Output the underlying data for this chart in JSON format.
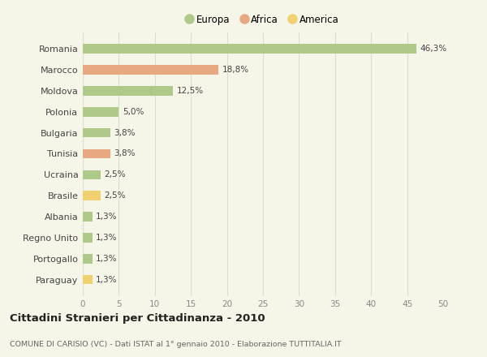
{
  "categories": [
    "Romania",
    "Marocco",
    "Moldova",
    "Polonia",
    "Bulgaria",
    "Tunisia",
    "Ucraina",
    "Brasile",
    "Albania",
    "Regno Unito",
    "Portogallo",
    "Paraguay"
  ],
  "values": [
    46.3,
    18.8,
    12.5,
    5.0,
    3.8,
    3.8,
    2.5,
    2.5,
    1.3,
    1.3,
    1.3,
    1.3
  ],
  "labels": [
    "46,3%",
    "18,8%",
    "12,5%",
    "5,0%",
    "3,8%",
    "3,8%",
    "2,5%",
    "2,5%",
    "1,3%",
    "1,3%",
    "1,3%",
    "1,3%"
  ],
  "colors": [
    "#aec98a",
    "#e8a882",
    "#aec98a",
    "#aec98a",
    "#aec98a",
    "#e8a882",
    "#aec98a",
    "#f0d070",
    "#aec98a",
    "#aec98a",
    "#aec98a",
    "#f0d070"
  ],
  "legend": [
    {
      "label": "Europa",
      "color": "#aec98a"
    },
    {
      "label": "Africa",
      "color": "#e8a882"
    },
    {
      "label": "America",
      "color": "#f0d070"
    }
  ],
  "xlim": [
    0,
    50
  ],
  "xticks": [
    0,
    5,
    10,
    15,
    20,
    25,
    30,
    35,
    40,
    45,
    50
  ],
  "title": "Cittadini Stranieri per Cittadinanza - 2010",
  "subtitle": "COMUNE DI CARISIO (VC) - Dati ISTAT al 1° gennaio 2010 - Elaborazione TUTTITALIA.IT",
  "background_color": "#f5f5e8",
  "grid_color": "#ddddcc",
  "bar_height": 0.45
}
